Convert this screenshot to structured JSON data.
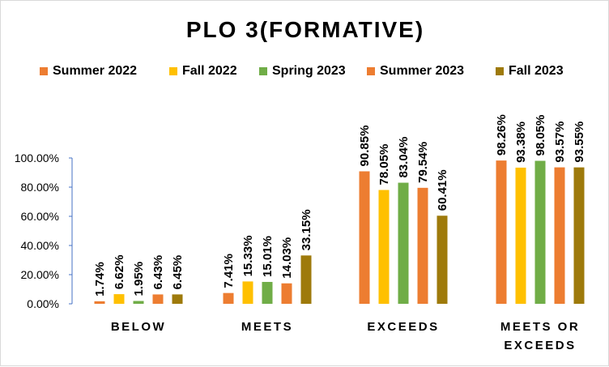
{
  "colors": {
    "summer": "#ED7D31",
    "fall": "#FFC000",
    "spring": "#70AD47",
    "fall2023": "#9E7A0B",
    "gridline": "#d9d9d9",
    "axis": "#4472C4"
  },
  "chart_data": {
    "type": "bar",
    "title": "PLO 3(FORMATIVE)",
    "categories": [
      "BELOW",
      "MEETS",
      "EXCEEDS",
      "MEETS OR EXCEEDS"
    ],
    "category_lines": [
      [
        "BELOW"
      ],
      [
        "MEETS"
      ],
      [
        "EXCEEDS"
      ],
      [
        "MEETS OR",
        "EXCEEDS"
      ]
    ],
    "ylim": [
      0,
      100
    ],
    "ytick_values": [
      0,
      20,
      40,
      60,
      80,
      100
    ],
    "ytick_labels": [
      "0.00%",
      "20.00%",
      "40.00%",
      "60.00%",
      "80.00%",
      "100.00%"
    ],
    "grid": false,
    "legend_position": "top",
    "series": [
      {
        "name": "Summer 2022",
        "color": "#ED7D31",
        "values": [
          1.74,
          7.41,
          90.85,
          98.26
        ],
        "labels": [
          "1.74%",
          "7.41%",
          "90.85%",
          "98.26%"
        ]
      },
      {
        "name": "Fall 2022",
        "color": "#FFC000",
        "values": [
          6.62,
          15.33,
          78.05,
          93.38
        ],
        "labels": [
          "6.62%",
          "15.33%",
          "78.05%",
          "93.38%"
        ]
      },
      {
        "name": "Spring 2023",
        "color": "#70AD47",
        "values": [
          1.95,
          15.01,
          83.04,
          98.05
        ],
        "labels": [
          "1.95%",
          "15.01%",
          "83.04%",
          "98.05%"
        ]
      },
      {
        "name": "Summer 2023",
        "color": "#ED7D31",
        "values": [
          6.43,
          14.03,
          79.54,
          93.57
        ],
        "labels": [
          "6.43%",
          "14.03%",
          "79.54%",
          "93.57%"
        ]
      },
      {
        "name": "Fall 2023",
        "color": "#9E7A0B",
        "values": [
          6.45,
          33.15,
          60.41,
          93.55
        ],
        "labels": [
          "6.45%",
          "33.15%",
          "60.41%",
          "93.55%"
        ]
      }
    ]
  }
}
